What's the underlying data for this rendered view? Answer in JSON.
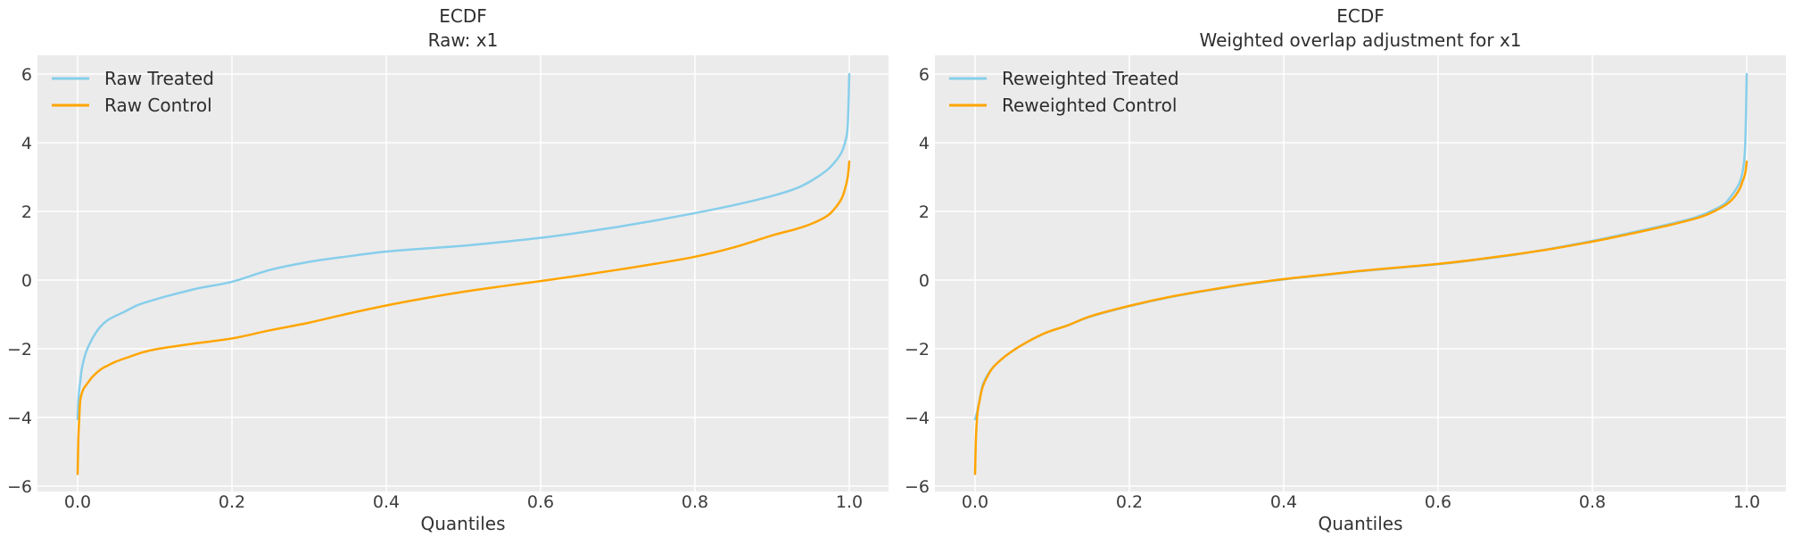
{
  "figure": {
    "background": "#ffffff",
    "palette": {
      "plot_background": "#ebebeb",
      "gridline": "#ffffff",
      "title_text": "#2e2e2e",
      "tick_text": "#3d3d3d",
      "axis_label_text": "#333333",
      "treated_line": "#87CEEB",
      "control_line": "#FFA500"
    }
  },
  "chart_data": [
    {
      "type": "line",
      "title": "ECDF",
      "subtitle": "Raw: x1",
      "xlabel": "Quantiles",
      "ylabel": "",
      "grid": true,
      "legend_position": "upper left",
      "legend_frame": false,
      "xlim": [
        -0.05,
        1.05
      ],
      "ylim": [
        -6.18,
        6.58
      ],
      "xticks": {
        "values": [
          0.0,
          0.2,
          0.4,
          0.6,
          0.8,
          1.0
        ],
        "labels": [
          "0.0",
          "0.2",
          "0.4",
          "0.6",
          "0.8",
          "1.0"
        ]
      },
      "yticks": {
        "values": [
          6,
          4,
          2,
          0,
          -2,
          -4,
          -6
        ],
        "labels": [
          "6",
          "4",
          "2",
          "0",
          "−2",
          "−4",
          "−6"
        ]
      },
      "series": [
        {
          "name": "Raw Treated",
          "color": "#87CEEB",
          "points": [
            [
              0,
              -4.05
            ],
            [
              0.001,
              -3.5
            ],
            [
              0.002,
              -3.2
            ],
            [
              0.0035,
              -2.94
            ],
            [
              0.0054,
              -2.59
            ],
            [
              0.009,
              -2.24
            ],
            [
              0.013,
              -1.98
            ],
            [
              0.021,
              -1.63
            ],
            [
              0.029,
              -1.37
            ],
            [
              0.04,
              -1.15
            ],
            [
              0.059,
              -0.94
            ],
            [
              0.079,
              -0.72
            ],
            [
              0.1,
              -0.57
            ],
            [
              0.117,
              -0.46
            ],
            [
              0.156,
              -0.24
            ],
            [
              0.2,
              -0.05
            ],
            [
              0.25,
              0.3
            ],
            [
              0.3,
              0.53
            ],
            [
              0.35,
              0.69
            ],
            [
              0.4,
              0.83
            ],
            [
              0.45,
              0.92
            ],
            [
              0.5,
              1.0
            ],
            [
              0.55,
              1.11
            ],
            [
              0.6,
              1.23
            ],
            [
              0.65,
              1.38
            ],
            [
              0.7,
              1.55
            ],
            [
              0.75,
              1.74
            ],
            [
              0.8,
              1.95
            ],
            [
              0.85,
              2.18
            ],
            [
              0.9,
              2.45
            ],
            [
              0.93,
              2.66
            ],
            [
              0.95,
              2.88
            ],
            [
              0.97,
              3.18
            ],
            [
              0.98,
              3.4
            ],
            [
              0.99,
              3.72
            ],
            [
              0.995,
              4.05
            ],
            [
              0.998,
              4.5
            ],
            [
              1,
              6.0
            ]
          ]
        },
        {
          "name": "Raw Control",
          "color": "#FFA500",
          "points": [
            [
              0,
              -5.65
            ],
            [
              0.001,
              -4.6
            ],
            [
              0.002,
              -4.1
            ],
            [
              0.0035,
              -3.5
            ],
            [
              0.007,
              -3.2
            ],
            [
              0.013,
              -3.0
            ],
            [
              0.02,
              -2.8
            ],
            [
              0.03,
              -2.6
            ],
            [
              0.038,
              -2.5
            ],
            [
              0.05,
              -2.37
            ],
            [
              0.065,
              -2.25
            ],
            [
              0.085,
              -2.1
            ],
            [
              0.105,
              -2.0
            ],
            [
              0.15,
              -1.85
            ],
            [
              0.2,
              -1.7
            ],
            [
              0.25,
              -1.46
            ],
            [
              0.3,
              -1.24
            ],
            [
              0.35,
              -0.98
            ],
            [
              0.4,
              -0.74
            ],
            [
              0.45,
              -0.53
            ],
            [
              0.5,
              -0.34
            ],
            [
              0.55,
              -0.18
            ],
            [
              0.6,
              -0.03
            ],
            [
              0.65,
              0.13
            ],
            [
              0.7,
              0.3
            ],
            [
              0.75,
              0.48
            ],
            [
              0.8,
              0.68
            ],
            [
              0.85,
              0.95
            ],
            [
              0.9,
              1.3
            ],
            [
              0.93,
              1.48
            ],
            [
              0.95,
              1.63
            ],
            [
              0.97,
              1.85
            ],
            [
              0.98,
              2.05
            ],
            [
              0.99,
              2.37
            ],
            [
              0.995,
              2.7
            ],
            [
              0.998,
              3.0
            ],
            [
              1,
              3.45
            ]
          ]
        }
      ]
    },
    {
      "type": "line",
      "title": "ECDF",
      "subtitle": "Weighted overlap adjustment for x1",
      "xlabel": "Quantiles",
      "ylabel": "",
      "grid": true,
      "legend_position": "upper left",
      "legend_frame": false,
      "xlim": [
        -0.05,
        1.05
      ],
      "ylim": [
        -6.18,
        6.58
      ],
      "xticks": {
        "values": [
          0.0,
          0.2,
          0.4,
          0.6,
          0.8,
          1.0
        ],
        "labels": [
          "0.0",
          "0.2",
          "0.4",
          "0.6",
          "0.8",
          "1.0"
        ]
      },
      "yticks": {
        "values": [
          6,
          4,
          2,
          0,
          -2,
          -4,
          -6
        ],
        "labels": [
          "6",
          "4",
          "2",
          "0",
          "−2",
          "−4",
          "−6"
        ]
      },
      "series": [
        {
          "name": "Reweighted Treated",
          "color": "#87CEEB",
          "points": [
            [
              0,
              -4.05
            ],
            [
              0.002,
              -3.9
            ],
            [
              0.005,
              -3.6
            ],
            [
              0.01,
              -3.05
            ],
            [
              0.018,
              -2.7
            ],
            [
              0.025,
              -2.5
            ],
            [
              0.04,
              -2.2
            ],
            [
              0.06,
              -1.9
            ],
            [
              0.09,
              -1.55
            ],
            [
              0.12,
              -1.32
            ],
            [
              0.15,
              -1.06
            ],
            [
              0.2,
              -0.76
            ],
            [
              0.25,
              -0.51
            ],
            [
              0.3,
              -0.31
            ],
            [
              0.35,
              -0.13
            ],
            [
              0.4,
              0.02
            ],
            [
              0.45,
              0.14
            ],
            [
              0.5,
              0.26
            ],
            [
              0.55,
              0.36
            ],
            [
              0.6,
              0.46
            ],
            [
              0.65,
              0.59
            ],
            [
              0.7,
              0.74
            ],
            [
              0.75,
              0.93
            ],
            [
              0.8,
              1.14
            ],
            [
              0.85,
              1.38
            ],
            [
              0.9,
              1.63
            ],
            [
              0.93,
              1.8
            ],
            [
              0.95,
              1.97
            ],
            [
              0.97,
              2.2
            ],
            [
              0.98,
              2.45
            ],
            [
              0.99,
              2.8
            ],
            [
              0.995,
              3.2
            ],
            [
              0.998,
              3.9
            ],
            [
              1,
              6.0
            ]
          ]
        },
        {
          "name": "Reweighted Control",
          "color": "#FFA500",
          "points": [
            [
              0,
              -5.65
            ],
            [
              0.001,
              -4.7
            ],
            [
              0.002,
              -4.2
            ],
            [
              0.0035,
              -3.8
            ],
            [
              0.006,
              -3.5
            ],
            [
              0.01,
              -3.1
            ],
            [
              0.018,
              -2.72
            ],
            [
              0.025,
              -2.5
            ],
            [
              0.04,
              -2.2
            ],
            [
              0.06,
              -1.9
            ],
            [
              0.09,
              -1.55
            ],
            [
              0.12,
              -1.32
            ],
            [
              0.15,
              -1.05
            ],
            [
              0.2,
              -0.75
            ],
            [
              0.25,
              -0.5
            ],
            [
              0.3,
              -0.3
            ],
            [
              0.35,
              -0.12
            ],
            [
              0.4,
              0.03
            ],
            [
              0.45,
              0.15
            ],
            [
              0.5,
              0.27
            ],
            [
              0.55,
              0.37
            ],
            [
              0.6,
              0.47
            ],
            [
              0.65,
              0.6
            ],
            [
              0.7,
              0.75
            ],
            [
              0.75,
              0.92
            ],
            [
              0.8,
              1.12
            ],
            [
              0.85,
              1.35
            ],
            [
              0.9,
              1.6
            ],
            [
              0.93,
              1.77
            ],
            [
              0.95,
              1.92
            ],
            [
              0.97,
              2.15
            ],
            [
              0.98,
              2.32
            ],
            [
              0.99,
              2.62
            ],
            [
              0.995,
              2.9
            ],
            [
              0.998,
              3.1
            ],
            [
              1,
              3.45
            ]
          ]
        }
      ]
    }
  ]
}
